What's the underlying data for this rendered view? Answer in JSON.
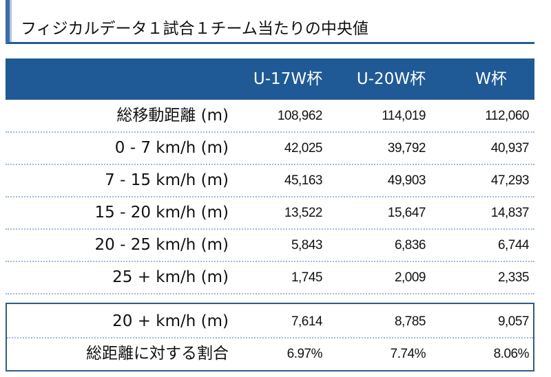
{
  "title": "フィジカルデータ１試合１チーム当たりの中央値",
  "table": {
    "columns": [
      "U-17W杯",
      "U-20W杯",
      "W杯"
    ],
    "rows": [
      [
        "総移動距離 (m)",
        "108,962",
        "114,019",
        "112,060"
      ],
      [
        "0 - 7 km/h (m)",
        "42,025",
        "39,792",
        "40,937"
      ],
      [
        "7 - 15 km/h (m)",
        "45,163",
        "49,903",
        "47,293"
      ],
      [
        "15 - 20 km/h (m)",
        "13,522",
        "15,647",
        "14,837"
      ],
      [
        "20 - 25 km/h (m)",
        "5,843",
        "6,836",
        "6,744"
      ],
      [
        "25 + km/h (m)",
        "1,745",
        "2,009",
        "2,335"
      ]
    ],
    "summary_rows": [
      [
        "20 + km/h (m)",
        "7,614",
        "8,785",
        "9,057"
      ],
      [
        "総距離に対する割合",
        "6.97%",
        "7.74%",
        "8.06%"
      ]
    ]
  }
}
